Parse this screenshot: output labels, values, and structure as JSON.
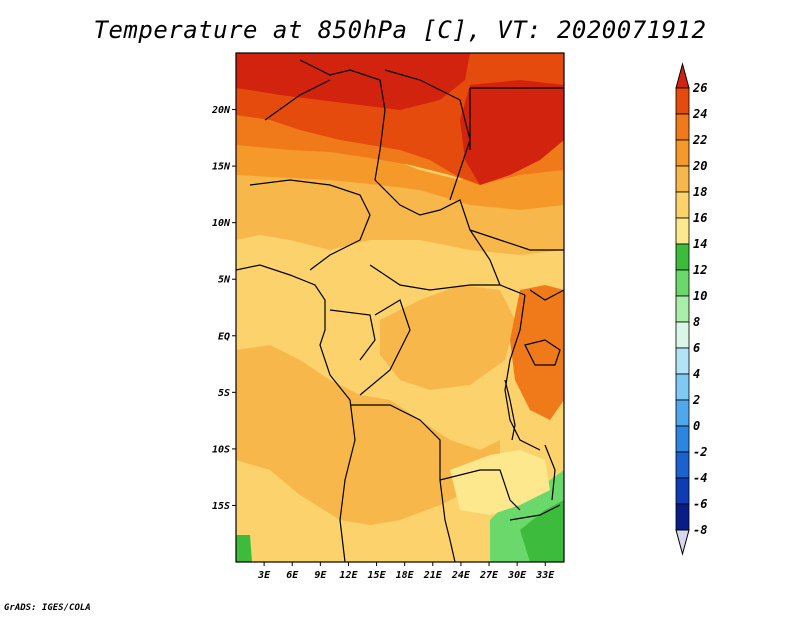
{
  "title": "Temperature at 850hPa [C], VT: 2020071912",
  "credit": "GrADS: IGES/COLA",
  "map": {
    "lon_range": [
      0,
      35
    ],
    "lat_range": [
      -20,
      25
    ],
    "lat_ticks": [
      {
        "value": 20,
        "label": "20N"
      },
      {
        "value": 15,
        "label": "15N"
      },
      {
        "value": 10,
        "label": "10N"
      },
      {
        "value": 5,
        "label": "5N"
      },
      {
        "value": 0,
        "label": "EQ"
      },
      {
        "value": -5,
        "label": "5S"
      },
      {
        "value": -10,
        "label": "10S"
      },
      {
        "value": -15,
        "label": "15S"
      }
    ],
    "lon_ticks": [
      {
        "value": 3,
        "label": "3E"
      },
      {
        "value": 6,
        "label": "6E"
      },
      {
        "value": 9,
        "label": "9E"
      },
      {
        "value": 12,
        "label": "12E"
      },
      {
        "value": 15,
        "label": "15E"
      },
      {
        "value": 18,
        "label": "18E"
      },
      {
        "value": 21,
        "label": "21E"
      },
      {
        "value": 24,
        "label": "24E"
      },
      {
        "value": 27,
        "label": "27E"
      },
      {
        "value": 30,
        "label": "30E"
      },
      {
        "value": 33,
        "label": "33E"
      }
    ]
  },
  "colorbar": {
    "levels": [
      26,
      24,
      22,
      20,
      18,
      16,
      14,
      12,
      10,
      8,
      6,
      4,
      2,
      0,
      -2,
      -4,
      -6,
      -8
    ],
    "colors": [
      "#d2230e",
      "#e54b0c",
      "#f07a1a",
      "#f59a2a",
      "#f8b74a",
      "#fbd26b",
      "#fde88e",
      "#3dbb3d",
      "#6bd86b",
      "#a9eea9",
      "#d9f7e9",
      "#b2e3f6",
      "#7fc9f2",
      "#4fa8ec",
      "#2c85e0",
      "#1b62cf",
      "#0e3db3",
      "#081e86",
      "#060b5c"
    ],
    "top_arrow_color": "#d2230e",
    "bottom_arrow_color": "#d7d7ee"
  },
  "palette": {
    "c26": "#d2230e",
    "c24": "#e54b0c",
    "c22": "#f07a1a",
    "c20": "#f59a2a",
    "c18": "#f8b74a",
    "c16": "#fbd26b",
    "c14": "#fde88e",
    "c12": "#3dbb3d",
    "c10": "#6bd86b"
  }
}
